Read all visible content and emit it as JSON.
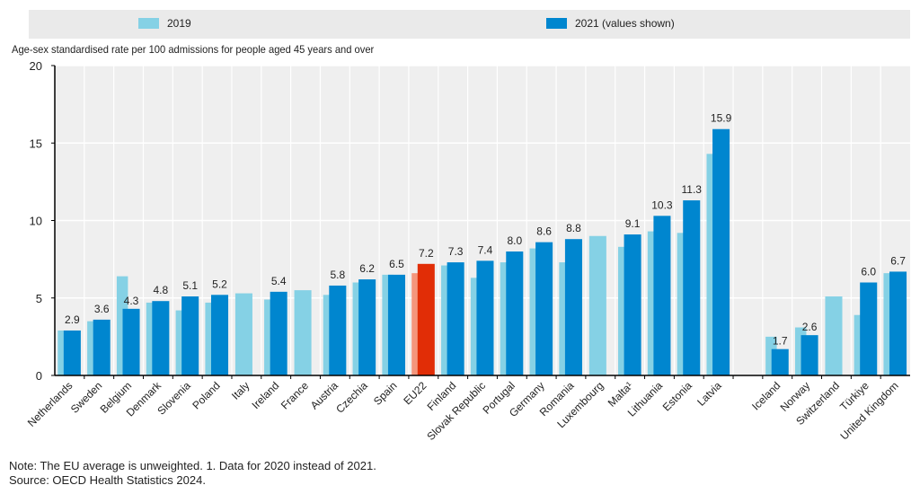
{
  "chart_data": {
    "type": "bar",
    "title": "",
    "ylabel": "Age-sex standardised rate per 100 admissions for people aged 45 years and over",
    "xlabel": "",
    "ylim": [
      0,
      20
    ],
    "yticks": [
      0,
      5,
      10,
      15,
      20
    ],
    "grid": true,
    "legend_position": "top",
    "categories": [
      "Netherlands",
      "Sweden",
      "Belgium",
      "Denmark",
      "Slovenia",
      "Poland",
      "Italy",
      "Ireland",
      "France",
      "Austria",
      "Czechia",
      "Spain",
      "EU22",
      "Finland",
      "Slovak Republic",
      "Portugal",
      "Germany",
      "Romania",
      "Luxembourg",
      "Malta¹",
      "Lithuania",
      "Estonia",
      "Latvia",
      "",
      "Iceland",
      "Norway",
      "Switzerland",
      "Türkiye",
      "United Kingdom"
    ],
    "highlight_category": "EU22",
    "series": [
      {
        "name": "2019",
        "color": "#85d1e5",
        "highlight_color": "#f4967c",
        "values": [
          2.9,
          3.5,
          6.4,
          4.7,
          4.2,
          4.7,
          5.3,
          4.9,
          5.5,
          5.2,
          6.0,
          6.5,
          6.6,
          7.1,
          6.3,
          7.3,
          8.2,
          7.3,
          9.0,
          8.3,
          9.3,
          9.2,
          14.3,
          null,
          2.5,
          3.1,
          5.1,
          3.9,
          6.6
        ]
      },
      {
        "name": "2021 (values shown)",
        "color": "#0086cf",
        "highlight_color": "#e12d06",
        "values": [
          2.9,
          3.6,
          4.3,
          4.8,
          5.1,
          5.2,
          null,
          5.4,
          null,
          5.8,
          6.2,
          6.5,
          7.2,
          7.3,
          7.4,
          8.0,
          8.6,
          8.8,
          null,
          9.1,
          10.3,
          11.3,
          15.9,
          null,
          1.7,
          2.6,
          null,
          6.0,
          6.7
        ],
        "labels": [
          "2.9",
          "3.6",
          "4.3",
          "4.8",
          "5.1",
          "5.2",
          "",
          "5.4",
          "",
          "5.8",
          "6.2",
          "6.5",
          "7.2",
          "7.3",
          "7.4",
          "8.0",
          "8.6",
          "8.8",
          "",
          "9.1",
          "10.3",
          "11.3",
          "15.9",
          "",
          "1.7",
          "2.6",
          "",
          "6.0",
          "6.7"
        ]
      }
    ]
  },
  "legend": {
    "items": [
      {
        "label": "2019",
        "color": "#85d1e5"
      },
      {
        "label": "2021 (values shown)",
        "color": "#0086cf"
      }
    ]
  },
  "notes": {
    "note": "Note: The EU average is unweighted. 1. Data for 2020 instead of 2021.",
    "source": "Source: OECD Health Statistics 2024."
  }
}
